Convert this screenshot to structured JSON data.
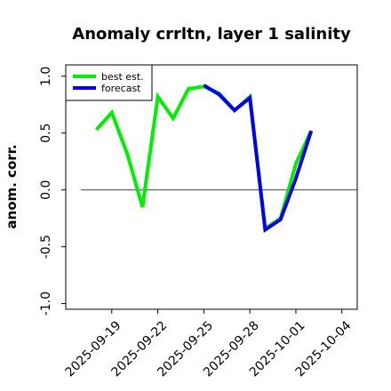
{
  "chart_data": {
    "type": "line",
    "title": "Anomaly crrltn, layer 1 salinity",
    "ylabel": "anom. corr.",
    "xlabel": "",
    "ylim": [
      -1.05,
      1.1
    ],
    "xlim": [
      "2025-09-16",
      "2025-10-05"
    ],
    "yticks": [
      "-1.0",
      "-0.5",
      "0.0",
      "0.5",
      "1.0"
    ],
    "xticks": [
      {
        "date": "2025-09-19",
        "label": "2025-09-19",
        "color": "#000000"
      },
      {
        "date": "2025-09-22",
        "label": "2025-09-22",
        "color": "#000000"
      },
      {
        "date": "2025-09-25",
        "label": "2025-09-25",
        "color": "#228b22"
      },
      {
        "date": "2025-09-28",
        "label": "2025-09-28",
        "color": "#000000"
      },
      {
        "date": "2025-10-01",
        "label": "2025-10-01",
        "color": "#000000"
      },
      {
        "date": "2025-10-04",
        "label": "2025-10-04",
        "color": "#000000"
      }
    ],
    "zero_line": {
      "from": "2025-09-17",
      "to": "2025-10-05",
      "y": 0,
      "color": "#555555"
    },
    "legend_position": "top-left",
    "series": [
      {
        "name": "best est.",
        "color": "#00ee00",
        "x": [
          "2025-09-18",
          "2025-09-19",
          "2025-09-20",
          "2025-09-21",
          "2025-09-22",
          "2025-09-23",
          "2025-09-24",
          "2025-09-25",
          "2025-09-26",
          "2025-09-27",
          "2025-09-28",
          "2025-09-29",
          "2025-09-30",
          "2025-10-01",
          "2025-10-02"
        ],
        "values": [
          0.53,
          0.68,
          0.32,
          -0.15,
          0.82,
          0.63,
          0.89,
          0.91,
          0.85,
          0.7,
          0.82,
          -0.34,
          -0.25,
          0.23,
          0.52
        ]
      },
      {
        "name": "forecast",
        "color": "#0000ee",
        "x": [
          "2025-09-25",
          "2025-09-26",
          "2025-09-27",
          "2025-09-28",
          "2025-09-29",
          "2025-09-30",
          "2025-10-01",
          "2025-10-02"
        ],
        "values": [
          0.92,
          0.84,
          0.7,
          0.81,
          -0.35,
          -0.26,
          0.1,
          0.52
        ]
      }
    ]
  }
}
